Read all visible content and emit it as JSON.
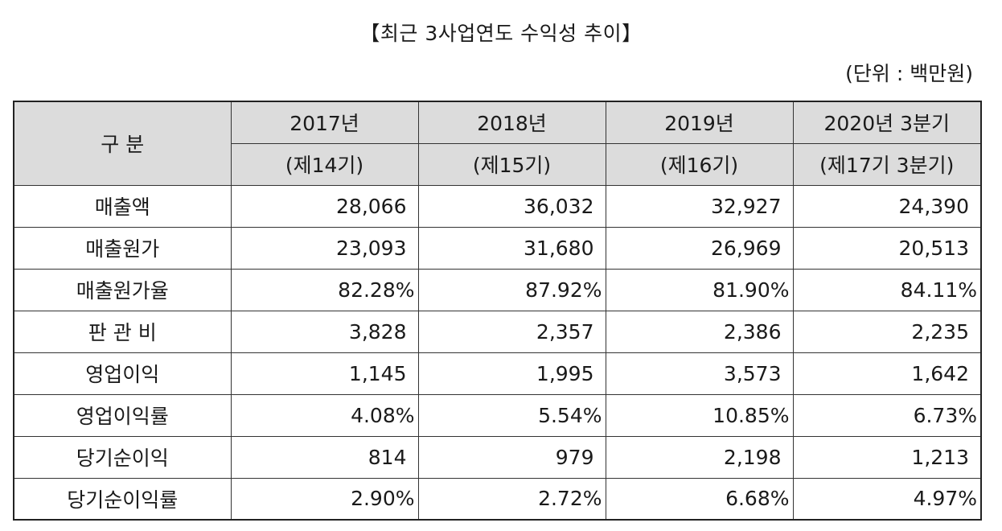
{
  "title": "【최근 3사업연도 수익성 추이】",
  "unit": "(단위 : 백만원)",
  "header": {
    "category": "구 분",
    "periods": [
      {
        "year": "2017년",
        "term": "(제14기)"
      },
      {
        "year": "2018년",
        "term": "(제15기)"
      },
      {
        "year": "2019년",
        "term": "(제16기)"
      },
      {
        "year": "2020년 3분기",
        "term": "(제17기 3분기)"
      }
    ]
  },
  "rows": [
    {
      "label": "매출액",
      "type": "num",
      "values": [
        "28,066",
        "36,032",
        "32,927",
        "24,390"
      ]
    },
    {
      "label": "매출원가",
      "type": "num",
      "values": [
        "23,093",
        "31,680",
        "26,969",
        "20,513"
      ]
    },
    {
      "label": "매출원가율",
      "type": "pct",
      "values": [
        "82.28%",
        "87.92%",
        "81.90%",
        "84.11%"
      ]
    },
    {
      "label": "판 관 비",
      "type": "num",
      "values": [
        "3,828",
        "2,357",
        "2,386",
        "2,235"
      ]
    },
    {
      "label": "영업이익",
      "type": "num",
      "values": [
        "1,145",
        "1,995",
        "3,573",
        "1,642"
      ]
    },
    {
      "label": "영업이익률",
      "type": "pct",
      "values": [
        "4.08%",
        "5.54%",
        "10.85%",
        "6.73%"
      ]
    },
    {
      "label": "당기순이익",
      "type": "num",
      "values": [
        "814",
        "979",
        "2,198",
        "1,213"
      ]
    },
    {
      "label": "당기순이익률",
      "type": "pct",
      "values": [
        "2.90%",
        "2.72%",
        "6.68%",
        "4.97%"
      ]
    }
  ]
}
